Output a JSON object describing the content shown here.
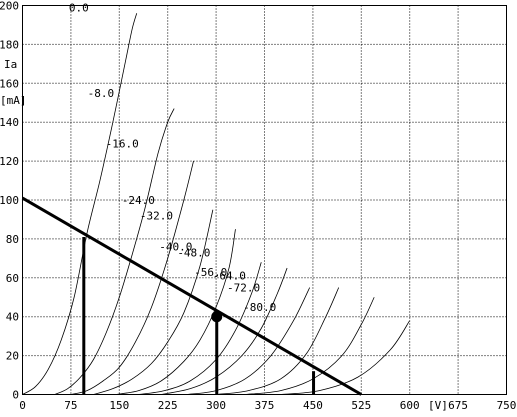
{
  "chart_data": {
    "type": "line",
    "x_ticks": [
      "0",
      "75",
      "150",
      "225",
      "300",
      "375",
      "450",
      "525",
      "600",
      "675",
      "750"
    ],
    "y_ticks": [
      "0",
      "20",
      "40",
      "60",
      "80",
      "100",
      "120",
      "140",
      "160",
      "180",
      "200"
    ],
    "xlim": [
      0,
      750
    ],
    "ylim": [
      0,
      200
    ],
    "x_unit_label": "[V]",
    "y_label_line1": "Ia",
    "y_label_line2": "[mA]",
    "grid": true,
    "series": [
      {
        "name": "0.0",
        "label_at": [
          75,
          196
        ],
        "x": [
          0,
          20,
          40,
          60,
          80,
          100,
          120,
          140,
          160,
          170,
          177
        ],
        "y": [
          0,
          4,
          13,
          28,
          50,
          83,
          110,
          140,
          172,
          188,
          196
        ]
      },
      {
        "name": "-8.0",
        "label_at": [
          104,
          152
        ],
        "x": [
          50,
          70,
          90,
          110,
          130,
          150,
          170,
          190,
          210,
          225,
          235
        ],
        "y": [
          0,
          3,
          9,
          18,
          32,
          50,
          72,
          96,
          124,
          140,
          147
        ]
      },
      {
        "name": "-16.0",
        "label_at": [
          132,
          126
        ],
        "x": [
          75,
          100,
          125,
          150,
          175,
          200,
          225,
          250,
          265
        ],
        "y": [
          0,
          2,
          7,
          14,
          27,
          45,
          70,
          100,
          120
        ]
      },
      {
        "name": "-24.0",
        "label_at": [
          157,
          97
        ],
        "x": [
          110,
          140,
          170,
          200,
          225,
          250,
          275,
          295
        ],
        "y": [
          0,
          3,
          8,
          16,
          27,
          42,
          66,
          95
        ]
      },
      {
        "name": "-32.0",
        "label_at": [
          185,
          89
        ],
        "x": [
          145,
          180,
          215,
          250,
          275,
          300,
          320,
          330
        ],
        "y": [
          0,
          2,
          7,
          17,
          28,
          45,
          65,
          85
        ]
      },
      {
        "name": "-40.0",
        "label_at": [
          215,
          73
        ],
        "x": [
          180,
          220,
          260,
          300,
          330,
          355,
          370
        ],
        "y": [
          0,
          2,
          7,
          18,
          33,
          52,
          68
        ]
      },
      {
        "name": "-48.0",
        "label_at": [
          243,
          70
        ],
        "x": [
          215,
          260,
          300,
          340,
          370,
          395,
          410
        ],
        "y": [
          0,
          3,
          9,
          20,
          34,
          52,
          65
        ]
      },
      {
        "name": "-56.0",
        "label_at": [
          269,
          60
        ],
        "x": [
          255,
          300,
          345,
          385,
          420,
          445
        ],
        "y": [
          0,
          2,
          8,
          20,
          38,
          55
        ]
      },
      {
        "name": "-64.0",
        "label_at": [
          298,
          58
        ],
        "x": [
          300,
          350,
          400,
          440,
          470,
          490
        ],
        "y": [
          0,
          2,
          8,
          21,
          40,
          55
        ]
      },
      {
        "name": "-72.0",
        "label_at": [
          320,
          52
        ],
        "x": [
          345,
          400,
          450,
          495,
          525,
          545
        ],
        "y": [
          0,
          2,
          8,
          20,
          36,
          50
        ]
      },
      {
        "name": "-80.0",
        "label_at": [
          345,
          42
        ],
        "x": [
          400,
          460,
          520,
          570,
          600
        ],
        "y": [
          0,
          2,
          9,
          23,
          38
        ]
      }
    ],
    "load_line": {
      "x": [
        0,
        525
      ],
      "y": [
        101,
        0
      ]
    },
    "operating_point": {
      "x": 301,
      "y": 40
    },
    "drop_lines": [
      {
        "x": 95,
        "y": 81
      },
      {
        "x": 301,
        "y": 40
      },
      {
        "x": 451,
        "y": 12
      }
    ]
  }
}
